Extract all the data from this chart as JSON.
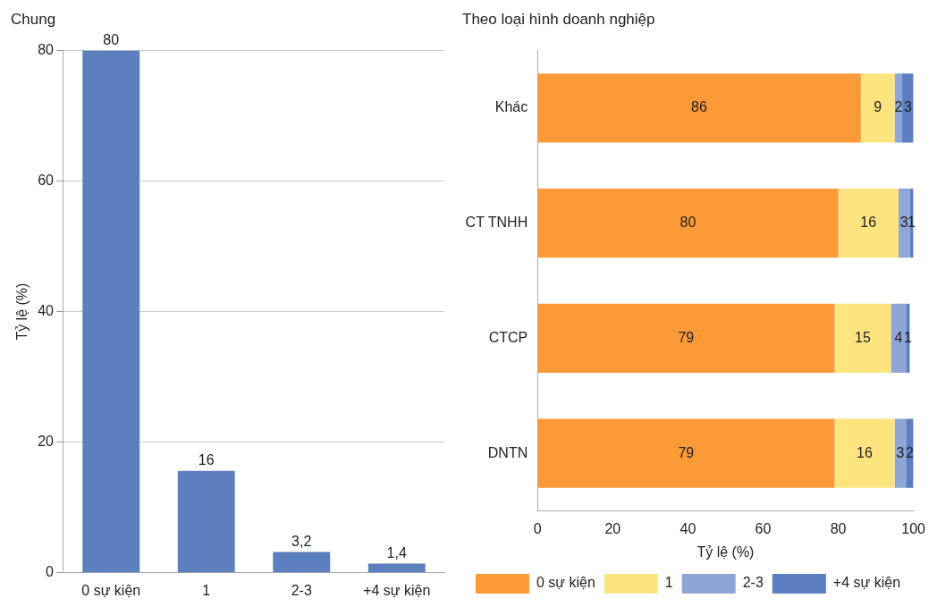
{
  "chart_data": [
    {
      "type": "bar",
      "title": "Chung",
      "ylabel": "Tỷ lệ (%)",
      "categories": [
        "0 sự kiện",
        "1",
        "2-3",
        "+4 sự kiện"
      ],
      "values": [
        80,
        15.6,
        3.2,
        1.4
      ],
      "value_labels": [
        "80",
        "16",
        "3,2",
        "1,4"
      ],
      "color": "#5b7fbf",
      "ylim": [
        0,
        80
      ],
      "yticks": [
        0,
        20,
        40,
        60,
        80
      ],
      "grid": "y",
      "legend": false
    },
    {
      "type": "bar",
      "title": "Theo loại hình doanh nghiệp",
      "xlabel": "Tỷ lệ (%)",
      "orientation": "horizontal",
      "stacked": true,
      "data_labels": true,
      "categories": [
        "Khác",
        "CT TNHH",
        "CTCP",
        "DNTN"
      ],
      "xlim": [
        0,
        100
      ],
      "xticks": [
        0,
        20,
        40,
        60,
        80,
        100
      ],
      "legend": "bottom",
      "series": [
        {
          "name": "0 sự kiện",
          "color": "#fd9a38",
          "values": [
            86,
            80,
            79,
            79
          ]
        },
        {
          "name": "1",
          "color": "#fde47f",
          "values": [
            9,
            16,
            15,
            16
          ]
        },
        {
          "name": "2-3",
          "color": "#8ea6d6",
          "values": [
            2,
            3,
            4,
            3
          ]
        },
        {
          "name": "+4 sự kiện",
          "color": "#5b7fc0",
          "values": [
            3,
            1,
            1,
            2
          ]
        }
      ]
    }
  ]
}
